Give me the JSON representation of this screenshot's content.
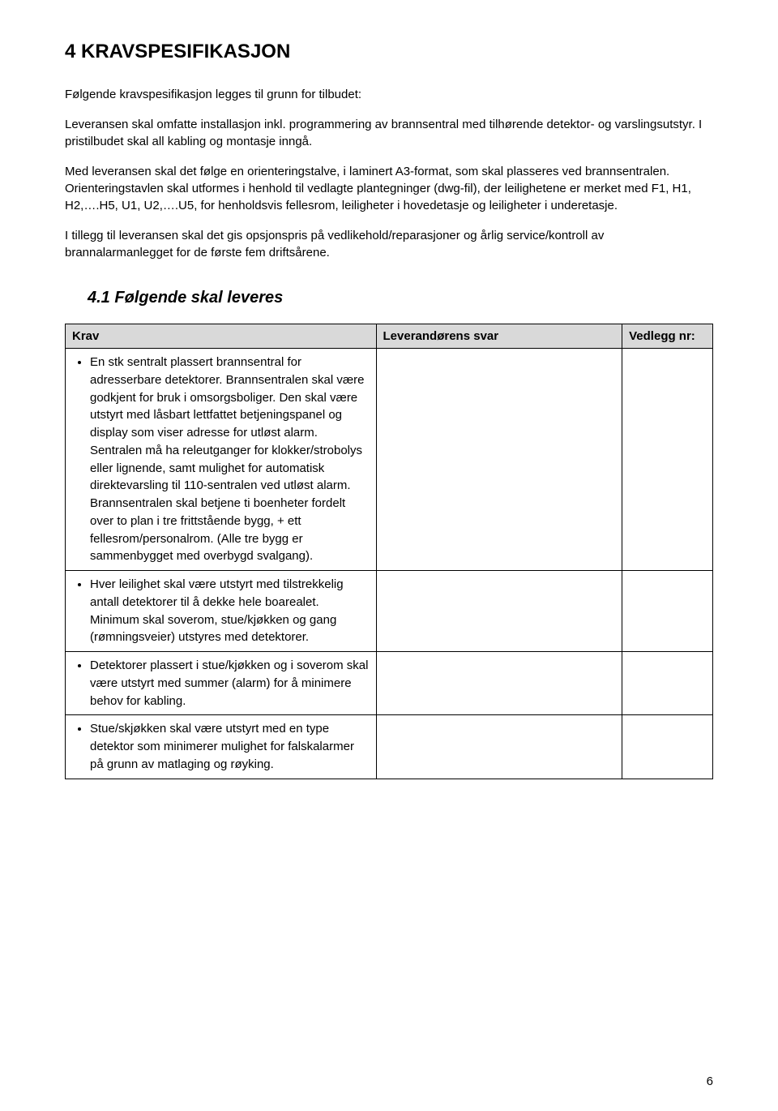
{
  "section": {
    "number": "4",
    "title": "KRAVSPESIFIKASJON",
    "heading": "4 KRAVSPESIFIKASJON"
  },
  "paragraphs": {
    "p1": "Følgende kravspesifikasjon legges til grunn for tilbudet:",
    "p2": "Leveransen skal omfatte installasjon inkl. programmering av brannsentral med tilhørende detektor- og varslingsutstyr. I pristilbudet skal all kabling og montasje inngå.",
    "p3": "Med leveransen skal det følge en orienteringstalve, i laminert A3-format, som skal plasseres ved brannsentralen. Orienteringstavlen skal utformes i henhold til vedlagte plantegninger (dwg-fil), der leilighetene er merket med F1, H1, H2,….H5, U1, U2,….U5, for henholdsvis fellesrom, leiligheter i hovedetasje og leiligheter i underetasje.",
    "p4": "I tillegg til leveransen skal det gis opsjonspris på vedlikehold/reparasjoner og årlig service/kontroll av brannalarmanlegget for de første fem driftsårene."
  },
  "subsection": {
    "number": "4.1",
    "title": "Følgende skal leveres",
    "heading": "4.1   Følgende skal leveres"
  },
  "table": {
    "headers": {
      "krav": "Krav",
      "svar": "Leverandørens svar",
      "vedlegg": "Vedlegg nr:"
    },
    "rows": [
      {
        "krav": "En stk sentralt plassert brannsentral for adresserbare detektorer. Brannsentralen skal være godkjent for bruk i omsorgsboliger. Den skal være utstyrt med låsbart lettfattet betjeningspanel og display som viser adresse for utløst alarm. Sentralen må ha releutganger for klokker/strobolys eller lignende, samt mulighet for automatisk direktevarsling til 110-sentralen ved utløst alarm. Brannsentralen skal betjene ti boenheter fordelt over to plan i tre frittstående bygg, + ett fellesrom/personalrom. (Alle tre bygg er sammenbygget med overbygd svalgang).",
        "svar": "",
        "vedlegg": ""
      },
      {
        "krav": "Hver leilighet skal være utstyrt med tilstrekkelig antall detektorer til å dekke hele boarealet. Minimum skal soverom, stue/kjøkken og gang (rømningsveier) utstyres med detektorer.",
        "svar": "",
        "vedlegg": ""
      },
      {
        "krav": "Detektorer plassert i stue/kjøkken og i soverom skal være utstyrt med summer (alarm) for å minimere behov for kabling.",
        "svar": "",
        "vedlegg": ""
      },
      {
        "krav": "Stue/skjøkken skal være utstyrt med en type detektor som minimerer mulighet for falskalarmer på grunn av matlaging og røyking.",
        "svar": "",
        "vedlegg": ""
      }
    ]
  },
  "pageNumber": "6",
  "style": {
    "background_color": "#ffffff",
    "text_color": "#000000",
    "header_bg": "#d9d9d9",
    "border_color": "#000000",
    "body_fontsize": 15,
    "heading_fontsize": 24,
    "subheading_fontsize": 20,
    "col_widths": {
      "krav": "48%",
      "svar": "38%",
      "vedlegg": "14%"
    }
  }
}
